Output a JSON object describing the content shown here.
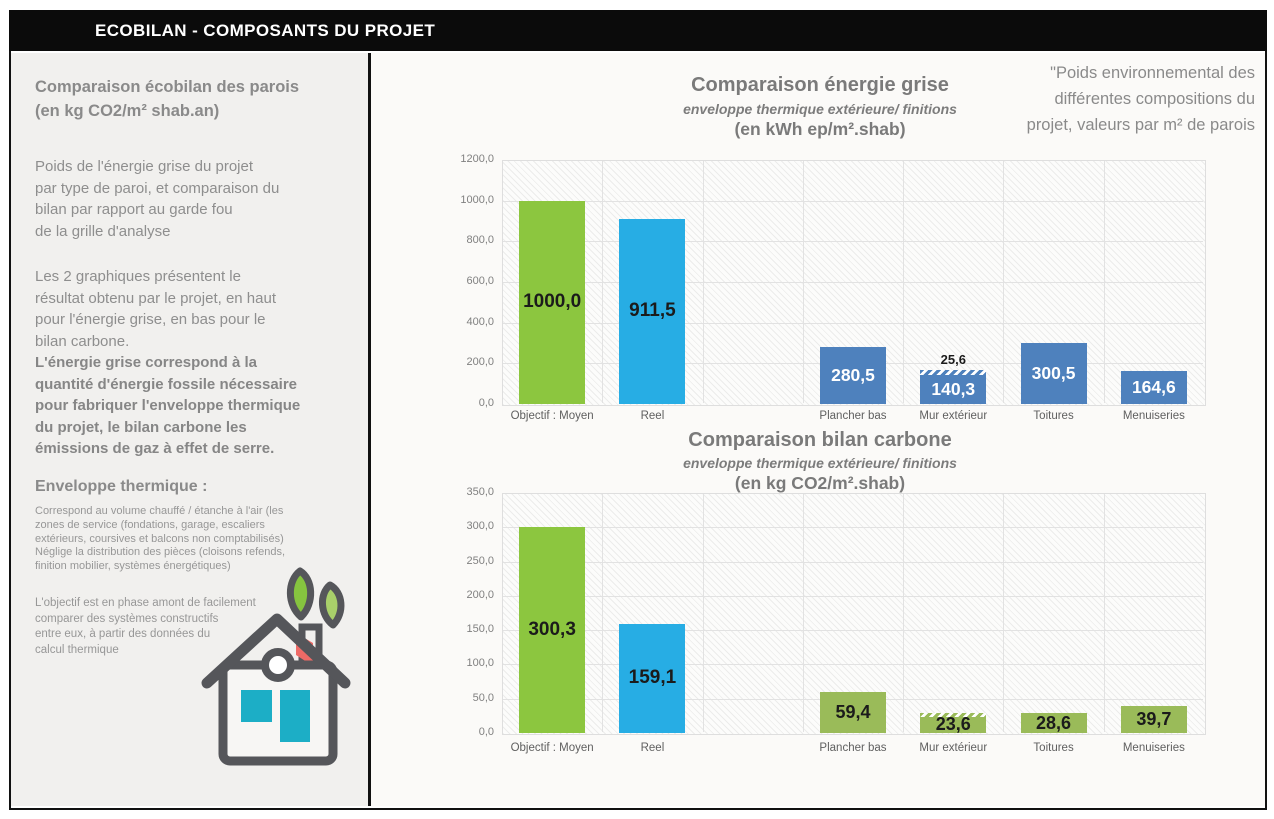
{
  "header": {
    "title": "ECOBILAN - COMPOSANTS DU PROJET"
  },
  "sidebar": {
    "heading": "Comparaison  écobilan  des  parois\n (en kg CO2/m² shab.an)",
    "para1": "Poids de l'énergie grise du projet\npar type de paroi, et comparaison du\nbilan par rapport au garde fou\nde la grille d'analyse",
    "para2": "Les 2 graphiques présentent le\nrésultat obtenu par le projet, en haut\npour l'énergie grise, en bas pour le\nbilan carbone.",
    "para3": "L'énergie grise correspond à la\nquantité d'énergie fossile nécessaire\npour fabriquer l'enveloppe thermique\ndu projet, le bilan carbone les\némissions de gaz à effet de serre.",
    "subheading": "Enveloppe thermique :",
    "small1": "Correspond  au volume  chauffé / étanche à l'air (les\nzones de service  (fondations,  garage,  escaliers\nextérieurs,  coursives  et balcons non comptabilisés)\nNéglige la distribution  des pièces (cloisons refends,\nfinition  mobilier,  systèmes  énergétiques)",
    "small2": "L'objectif  est en phase  amont  de facilement\ncomparer  des  systèmes   constructifs\nentre eux, à partir des  données  du\ncalcul thermique"
  },
  "annotation": {
    "text": "\"Poids environnemental des\ndifférentes compositions du\nprojet, valeurs par m² de parois"
  },
  "colors": {
    "objectif_green": "#8CC63F",
    "reel_cyan": "#27ADE4",
    "component_steelblue": "#4E81BD",
    "component_olive": "#9ABB59",
    "header_black": "#0b0b0b",
    "panel_gray": "#f1f0ee"
  },
  "chart_data": [
    {
      "type": "bar",
      "title": "Comparaison  énergie  grise",
      "subtitle": "enveloppe thermique extérieure/ finitions",
      "unit": "(en kWh ep/m².shab)",
      "ylim": [
        0,
        1200
      ],
      "ytick_labels": [
        "1200,0",
        "1000,0",
        "800,0",
        "600,0",
        "400,0",
        "200,0",
        "0,0"
      ],
      "grid": true,
      "legend": "none",
      "categories": [
        "Objectif : Moyen",
        "Reel",
        "",
        "Plancher bas",
        "Mur extérieur",
        "Toitures",
        "Menuiseries"
      ],
      "bars": [
        {
          "value": 1000.0,
          "label": "1000,0",
          "color": "#8CC63F",
          "label_color": "#1b1b1b",
          "size": "big"
        },
        {
          "value": 911.5,
          "label": "911,5",
          "color": "#27ADE4",
          "label_color": "#1b1b1b",
          "size": "big"
        },
        null,
        {
          "value": 280.5,
          "label": "280,5",
          "color": "#4E81BD",
          "label_color": "#ffffff"
        },
        {
          "value": 140.3,
          "label": "140,3",
          "color": "#4E81BD",
          "label_color": "#ffffff",
          "stack_hatched": {
            "value": 25.6,
            "label": "25,6"
          }
        },
        {
          "value": 300.5,
          "label": "300,5",
          "color": "#4E81BD",
          "label_color": "#ffffff"
        },
        {
          "value": 164.6,
          "label": "164,6",
          "color": "#4E81BD",
          "label_color": "#ffffff"
        }
      ]
    },
    {
      "type": "bar",
      "title": "Comparaison  bilan carbone",
      "subtitle": "enveloppe thermique extérieure/ finitions",
      "unit": "(en kg CO2/m².shab)",
      "ylim": [
        0,
        350
      ],
      "ytick_labels": [
        "350,0",
        "300,0",
        "250,0",
        "200,0",
        "150,0",
        "100,0",
        "50,0",
        "0,0"
      ],
      "grid": true,
      "legend": "none",
      "categories": [
        "Objectif : Moyen",
        "Reel",
        "",
        "Plancher bas",
        "Mur extérieur",
        "Toitures",
        "Menuiseries"
      ],
      "bars": [
        {
          "value": 300.3,
          "label": "300,3",
          "color": "#8CC63F",
          "label_color": "#1b1b1b",
          "size": "big"
        },
        {
          "value": 159.1,
          "label": "159,1",
          "color": "#27ADE4",
          "label_color": "#1b1b1b",
          "size": "big"
        },
        null,
        {
          "value": 59.4,
          "label": "59,4",
          "color": "#9ABB59",
          "label_color": "#1b1b1b"
        },
        {
          "value": 23.6,
          "label": "23,6",
          "color": "#9ABB59",
          "label_color": "#1b1b1b",
          "stack_hatched": {
            "value": 4.0,
            "label": ""
          }
        },
        {
          "value": 28.6,
          "label": "28,6",
          "color": "#9ABB59",
          "label_color": "#1b1b1b"
        },
        {
          "value": 39.7,
          "label": "39,7",
          "color": "#9ABB59",
          "label_color": "#1b1b1b"
        }
      ]
    }
  ]
}
